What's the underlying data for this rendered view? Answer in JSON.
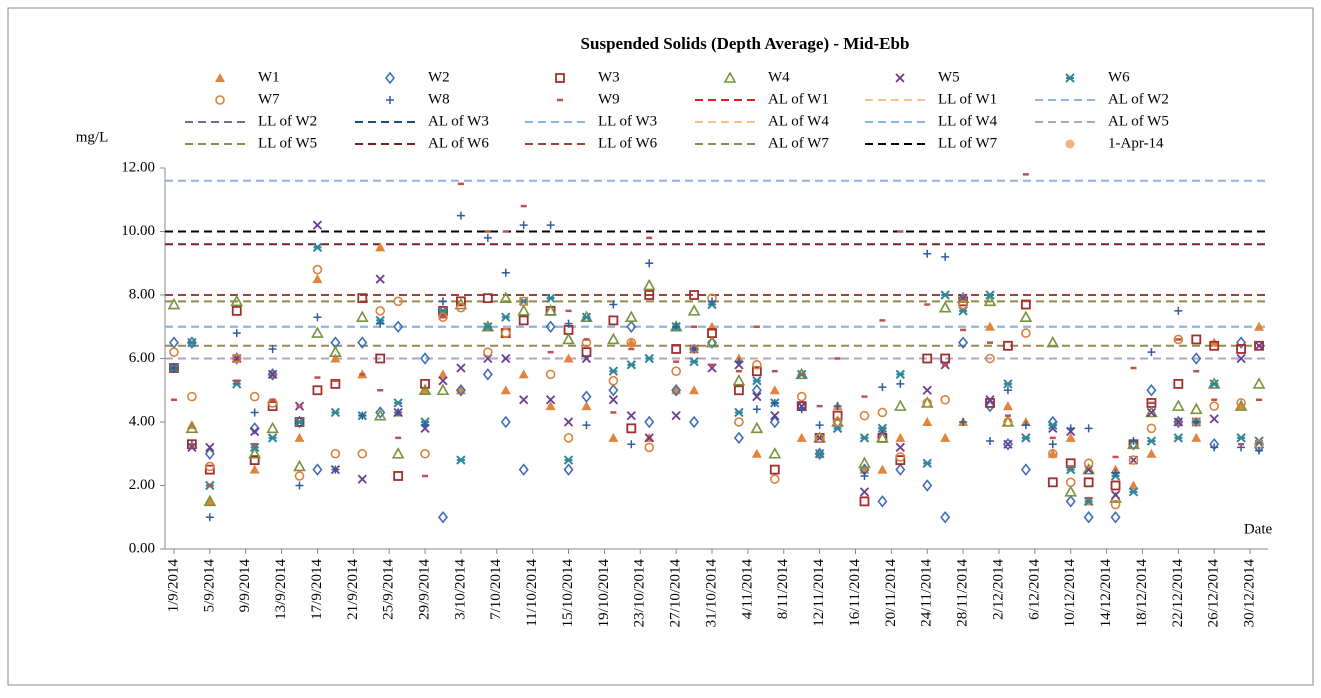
{
  "chart_data": {
    "type": "scatter",
    "title": "Suspended Solids (Depth Average) - Mid-Ebb",
    "y_label": "mg/L",
    "x_label": "Date",
    "xlim": [
      "31/8/2014",
      "1/1/2015"
    ],
    "xticks": [
      "1/9/2014",
      "5/9/2014",
      "9/9/2014",
      "13/9/2014",
      "17/9/2014",
      "21/9/2014",
      "25/9/2014",
      "29/9/2014",
      "3/10/2014",
      "7/10/2014",
      "11/10/2014",
      "15/10/2014",
      "19/10/2014",
      "23/10/2014",
      "27/10/2014",
      "31/10/2014",
      "4/11/2014",
      "8/11/2014",
      "12/11/2014",
      "16/11/2014",
      "20/11/2014",
      "24/11/2014",
      "28/11/2014",
      "2/12/2014",
      "6/12/2014",
      "10/12/2014",
      "14/12/2014",
      "18/12/2014",
      "22/12/2014",
      "26/12/2014",
      "30/12/2014"
    ],
    "ylim": [
      0,
      12
    ],
    "yticks": [
      {
        "value": 0,
        "label": "0.00"
      },
      {
        "value": 2,
        "label": "2.00"
      },
      {
        "value": 4,
        "label": "4.00"
      },
      {
        "value": 6,
        "label": "6.00"
      },
      {
        "value": 8,
        "label": "8.00"
      },
      {
        "value": 10,
        "label": "10.00"
      },
      {
        "value": 12,
        "label": "12.00"
      }
    ],
    "x": [
      "1/9/2014",
      "3/9/2014",
      "5/9/2014",
      "8/9/2014",
      "10/9/2014",
      "12/9/2014",
      "15/9/2014",
      "17/9/2014",
      "19/9/2014",
      "22/9/2014",
      "24/9/2014",
      "26/9/2014",
      "29/9/2014",
      "1/10/2014",
      "3/10/2014",
      "6/10/2014",
      "8/10/2014",
      "10/10/2014",
      "13/10/2014",
      "15/10/2014",
      "17/10/2014",
      "20/10/2014",
      "22/10/2014",
      "24/10/2014",
      "27/10/2014",
      "29/10/2014",
      "31/10/2014",
      "3/11/2014",
      "5/11/2014",
      "7/11/2014",
      "10/11/2014",
      "12/11/2014",
      "14/11/2014",
      "17/11/2014",
      "19/11/2014",
      "21/11/2014",
      "24/11/2014",
      "26/11/2014",
      "28/11/2014",
      "1/12/2014",
      "3/12/2014",
      "5/12/2014",
      "8/12/2014",
      "10/12/2014",
      "12/12/2014",
      "15/12/2014",
      "17/12/2014",
      "19/12/2014",
      "22/12/2014",
      "24/12/2014",
      "26/12/2014",
      "29/12/2014",
      "31/12/2014"
    ],
    "series": [
      {
        "name": "W1",
        "marker": "triangle-filled",
        "color": "#e2843c",
        "values": [
          5.7,
          3.9,
          1.5,
          6.0,
          2.5,
          5.5,
          3.5,
          8.5,
          6.0,
          5.5,
          9.5,
          4.3,
          5.0,
          5.5,
          5.0,
          7.0,
          5.0,
          5.5,
          4.5,
          6.0,
          4.5,
          3.5,
          6.5,
          3.5,
          5.0,
          5.0,
          7.0,
          6.0,
          3.0,
          5.0,
          3.5,
          3.0,
          4.5,
          2.5,
          2.5,
          3.5,
          4.0,
          3.5,
          4.0,
          7.0,
          4.5,
          4.0,
          3.0,
          3.5,
          1.5,
          2.5,
          2.0,
          3.0,
          4.0,
          3.5,
          6.5,
          4.5,
          7.0
        ]
      },
      {
        "name": "W2",
        "marker": "diamond",
        "color": "#3f6fb5",
        "values": [
          6.5,
          6.5,
          3.0,
          6.0,
          3.8,
          5.5,
          4.0,
          2.5,
          6.5,
          6.5,
          4.3,
          7.0,
          6.0,
          1.0,
          5.0,
          5.5,
          4.0,
          2.5,
          7.0,
          2.5,
          4.8,
          5.0,
          7.0,
          4.0,
          5.0,
          4.0,
          6.5,
          3.5,
          5.0,
          4.0,
          4.5,
          3.0,
          4.0,
          2.5,
          1.5,
          2.5,
          2.0,
          1.0,
          6.5,
          4.5,
          3.3,
          2.5,
          4.0,
          1.5,
          1.0,
          1.0,
          3.3,
          5.0,
          4.0,
          6.0,
          3.3,
          6.5,
          3.2
        ]
      },
      {
        "name": "W3",
        "marker": "square",
        "color": "#a32d2d",
        "values": [
          5.7,
          3.3,
          2.5,
          7.5,
          2.8,
          4.5,
          4.0,
          5.0,
          5.2,
          7.9,
          6.0,
          2.3,
          5.2,
          7.5,
          7.8,
          7.9,
          6.8,
          7.2,
          7.5,
          6.9,
          6.2,
          7.2,
          3.8,
          8.0,
          6.3,
          8.0,
          6.8,
          5.0,
          5.6,
          2.5,
          4.5,
          3.5,
          4.2,
          1.5,
          3.5,
          2.8,
          6.0,
          6.0,
          7.8,
          4.6,
          6.4,
          7.7,
          2.1,
          2.7,
          2.1,
          2.0,
          3.3,
          4.6,
          5.2,
          6.6,
          6.4,
          6.3,
          6.4
        ]
      },
      {
        "name": "W4",
        "marker": "triangle",
        "color": "#77933c",
        "values": [
          7.7,
          3.8,
          1.5,
          7.8,
          3.0,
          3.8,
          2.6,
          6.8,
          6.2,
          7.3,
          4.2,
          3.0,
          5.0,
          5.0,
          7.7,
          7.0,
          7.9,
          7.5,
          7.5,
          6.6,
          7.3,
          6.6,
          7.3,
          8.3,
          7.0,
          7.5,
          6.5,
          5.3,
          3.8,
          3.0,
          5.5,
          3.5,
          4.0,
          2.7,
          3.5,
          4.5,
          4.6,
          7.6,
          7.9,
          7.8,
          4.0,
          7.3,
          6.5,
          1.8,
          2.5,
          1.6,
          3.3,
          4.3,
          4.5,
          4.4,
          5.2,
          4.5,
          5.2
        ]
      },
      {
        "name": "W5",
        "marker": "cross",
        "color": "#6b3c8f",
        "values": [
          5.7,
          3.2,
          3.2,
          6.0,
          3.7,
          5.5,
          4.5,
          10.2,
          2.5,
          2.2,
          8.5,
          4.3,
          3.8,
          5.3,
          5.7,
          6.0,
          6.0,
          4.7,
          4.7,
          4.0,
          6.0,
          4.7,
          4.2,
          3.5,
          4.2,
          6.3,
          5.7,
          5.8,
          4.8,
          4.2,
          4.5,
          3.5,
          3.8,
          1.8,
          3.7,
          3.2,
          5.0,
          5.8,
          7.9,
          4.7,
          3.3,
          3.5,
          3.8,
          3.7,
          2.5,
          1.7,
          2.8,
          4.3,
          4.0,
          4.0,
          4.1,
          6.0,
          6.4
        ]
      },
      {
        "name": "W6",
        "marker": "asterisk",
        "color": "#31869b",
        "values": [
          5.7,
          6.5,
          2.0,
          5.2,
          3.2,
          3.5,
          4.0,
          9.5,
          4.3,
          4.2,
          7.2,
          4.6,
          4.0,
          7.5,
          2.8,
          7.0,
          7.3,
          7.8,
          7.9,
          2.8,
          7.3,
          5.6,
          5.8,
          6.0,
          7.0,
          5.9,
          7.7,
          4.3,
          5.3,
          4.6,
          5.5,
          3.0,
          3.8,
          3.5,
          3.8,
          5.5,
          2.7,
          8.0,
          7.5,
          8.0,
          5.2,
          3.5,
          3.9,
          2.5,
          1.5,
          2.3,
          1.8,
          3.4,
          3.5,
          4.0,
          5.2,
          3.5,
          3.4
        ]
      },
      {
        "name": "W7",
        "marker": "circle",
        "color": "#d9823b",
        "values": [
          6.2,
          4.8,
          2.6,
          6.0,
          4.8,
          4.6,
          2.3,
          8.8,
          3.0,
          3.0,
          7.5,
          7.8,
          3.0,
          7.3,
          7.6,
          6.2,
          6.8,
          7.8,
          5.5,
          3.5,
          6.5,
          5.3,
          6.5,
          3.2,
          5.6,
          6.3,
          7.9,
          4.0,
          5.8,
          2.2,
          4.8,
          3.5,
          4.0,
          4.2,
          4.3,
          2.9,
          4.6,
          4.7,
          7.7,
          6.0,
          4.0,
          6.8,
          3.0,
          2.1,
          2.7,
          1.4,
          2.8,
          3.8,
          6.6,
          4.0,
          4.5,
          4.6,
          3.3
        ]
      },
      {
        "name": "W8",
        "marker": "plus",
        "color": "#2e5c9e",
        "values": [
          5.7,
          3.3,
          1.0,
          6.8,
          4.3,
          6.3,
          2.0,
          7.3,
          2.5,
          4.2,
          7.1,
          4.3,
          3.9,
          7.8,
          10.5,
          9.8,
          8.7,
          10.2,
          10.2,
          7.1,
          3.9,
          7.7,
          3.3,
          9.0,
          7.0,
          6.3,
          7.8,
          5.9,
          4.4,
          4.6,
          4.4,
          3.9,
          4.5,
          2.3,
          5.1,
          5.2,
          9.3,
          9.2,
          4.0,
          3.4,
          5.0,
          3.9,
          3.3,
          3.8,
          3.8,
          2.4,
          3.4,
          6.2,
          7.5,
          4.0,
          3.2,
          3.2,
          3.1
        ]
      },
      {
        "name": "W9",
        "marker": "dash",
        "color": "#c0504d",
        "values": [
          4.7,
          3.3,
          2.0,
          5.3,
          3.3,
          4.7,
          4.5,
          5.4,
          5.3,
          5.5,
          5.0,
          3.5,
          2.3,
          7.3,
          11.5,
          10.0,
          10.0,
          10.8,
          6.2,
          7.5,
          6.6,
          4.3,
          6.3,
          9.8,
          5.9,
          7.0,
          5.8,
          5.6,
          7.0,
          5.6,
          5.5,
          4.5,
          6.0,
          4.8,
          7.2,
          10.0,
          7.7,
          5.8,
          6.9,
          6.5,
          4.2,
          11.8,
          3.5,
          2.6,
          1.6,
          2.9,
          5.7,
          4.6,
          6.6,
          5.6,
          4.7,
          3.3,
          4.7
        ]
      },
      {
        "name": "1-Apr-14",
        "marker": "circle-filled",
        "color": "#f4b183",
        "values": [
          null,
          null,
          null,
          null,
          null,
          null,
          null,
          null,
          null,
          null,
          null,
          null,
          null,
          null,
          null,
          null,
          null,
          null,
          null,
          null,
          null,
          null,
          null,
          null,
          null,
          null,
          null,
          null,
          null,
          null,
          null,
          null,
          null,
          null,
          null,
          null,
          null,
          null,
          null,
          null,
          null,
          null,
          null,
          null,
          null,
          null,
          null,
          null,
          null,
          null,
          null,
          null,
          null
        ]
      }
    ],
    "reference_lines": [
      {
        "name": "AL of W1",
        "value": 8.0,
        "color": "#e02020"
      },
      {
        "name": "LL of W1",
        "value": 6.0,
        "color": "#f8c28f"
      },
      {
        "name": "AL of W2",
        "value": 7.0,
        "color": "#8db4e2"
      },
      {
        "name": "LL of W2",
        "value": 6.0,
        "color": "#76689c"
      },
      {
        "name": "AL of W3",
        "value": 10.0,
        "color": "#1f4e79"
      },
      {
        "name": "LL of W3",
        "value": 11.6,
        "color": "#8db4e2"
      },
      {
        "name": "AL of W4",
        "value": 7.8,
        "color": "#f8c28f"
      },
      {
        "name": "LL of W4",
        "value": 7.0,
        "color": "#8db4e2"
      },
      {
        "name": "AL of W5",
        "value": 6.0,
        "color": "#b3a2c7"
      },
      {
        "name": "LL of W5",
        "value": 6.4,
        "color": "#948a54"
      },
      {
        "name": "AL of W6",
        "value": 9.6,
        "color": "#7b2121"
      },
      {
        "name": "LL of W6",
        "value": 8.0,
        "color": "#a0403f"
      },
      {
        "name": "AL of W7",
        "value": 7.8,
        "color": "#948a54"
      },
      {
        "name": "LL of W7",
        "value": 10.0,
        "color": "#000000"
      }
    ]
  }
}
